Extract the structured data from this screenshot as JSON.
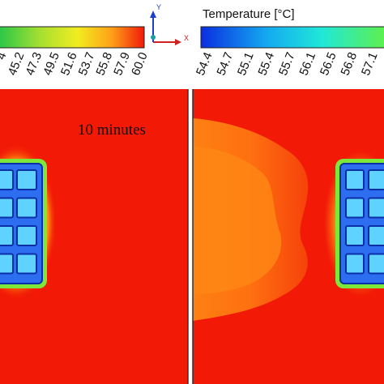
{
  "legend_left": {
    "title": "",
    "ticks": [
      "4",
      "45.2",
      "47.3",
      "49.5",
      "51.6",
      "53.7",
      "55.8",
      "57.9",
      "60.0"
    ]
  },
  "legend_right": {
    "title": "Temperature [°C]",
    "ticks": [
      "54.4",
      "54.7",
      "55.1",
      "55.4",
      "55.7",
      "56.1",
      "56.5",
      "56.8",
      "57.1"
    ]
  },
  "axes": {
    "y_label": "Y",
    "x_label": "X"
  },
  "annotation": "10 minutes",
  "colors": {
    "hot": "#f21a06",
    "outer_field": "#fe6a0a",
    "module_frame": "#2d6ef0",
    "cell_fill": "#5fd2ff",
    "cell_stroke": "#0b2fa8",
    "axis_y": "#1a3fd0",
    "axis_x": "#d02020",
    "axis_origin": "#18a0a0"
  }
}
